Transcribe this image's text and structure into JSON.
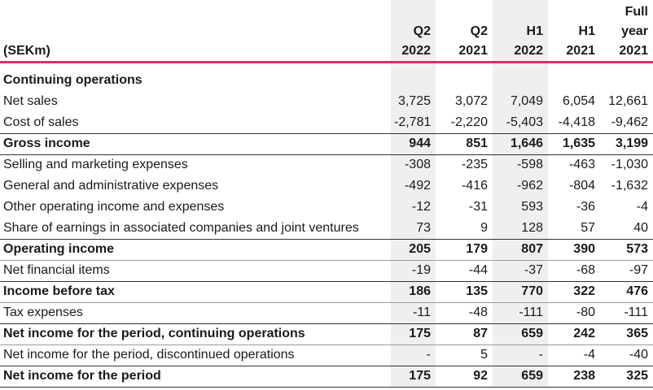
{
  "header": {
    "unit_label": "(SEKm)",
    "columns": [
      {
        "top": "",
        "mid": "Q2",
        "bottom": "2022"
      },
      {
        "top": "",
        "mid": "Q2",
        "bottom": "2021"
      },
      {
        "top": "",
        "mid": "H1",
        "bottom": "2022"
      },
      {
        "top": "",
        "mid": "H1",
        "bottom": "2021"
      },
      {
        "top": "Full",
        "mid": "year",
        "bottom": "2021"
      }
    ]
  },
  "section_title": "Continuing operations",
  "rows": [
    {
      "label": "Net sales",
      "values": [
        "3,725",
        "3,072",
        "7,049",
        "6,054",
        "12,661"
      ]
    },
    {
      "label": "Cost of sales",
      "values": [
        "-2,781",
        "-2,220",
        "-5,403",
        "-4,418",
        "-9,462"
      ]
    },
    {
      "label": "Gross income",
      "values": [
        "944",
        "851",
        "1,646",
        "1,635",
        "3,199"
      ]
    },
    {
      "label": "Selling and marketing expenses",
      "values": [
        "-308",
        "-235",
        "-598",
        "-463",
        "-1,030"
      ]
    },
    {
      "label": "General and administrative expenses",
      "values": [
        "-492",
        "-416",
        "-962",
        "-804",
        "-1,632"
      ]
    },
    {
      "label": "Other operating income and expenses",
      "values": [
        "-12",
        "-31",
        "593",
        "-36",
        "-4"
      ]
    },
    {
      "label": "Share of earnings in associated companies and joint ventures",
      "values": [
        "73",
        "9",
        "128",
        "57",
        "40"
      ]
    },
    {
      "label": "Operating income",
      "values": [
        "205",
        "179",
        "807",
        "390",
        "573"
      ]
    },
    {
      "label": "Net financial items",
      "values": [
        "-19",
        "-44",
        "-37",
        "-68",
        "-97"
      ]
    },
    {
      "label": "Income before tax",
      "values": [
        "186",
        "135",
        "770",
        "322",
        "476"
      ]
    },
    {
      "label": "Tax expenses",
      "values": [
        "-11",
        "-48",
        "-111",
        "-80",
        "-111"
      ]
    },
    {
      "label": "Net income for the period, continuing operations",
      "values": [
        "175",
        "87",
        "659",
        "242",
        "365"
      ]
    },
    {
      "label": "Net income for the period, discontinued operations",
      "values": [
        "-",
        "5",
        "-",
        "-4",
        "-40"
      ]
    },
    {
      "label": "Net income for the period",
      "values": [
        "175",
        "92",
        "659",
        "238",
        "325"
      ]
    }
  ],
  "colors": {
    "accent": "#d6336c",
    "shade": "#efefef"
  }
}
